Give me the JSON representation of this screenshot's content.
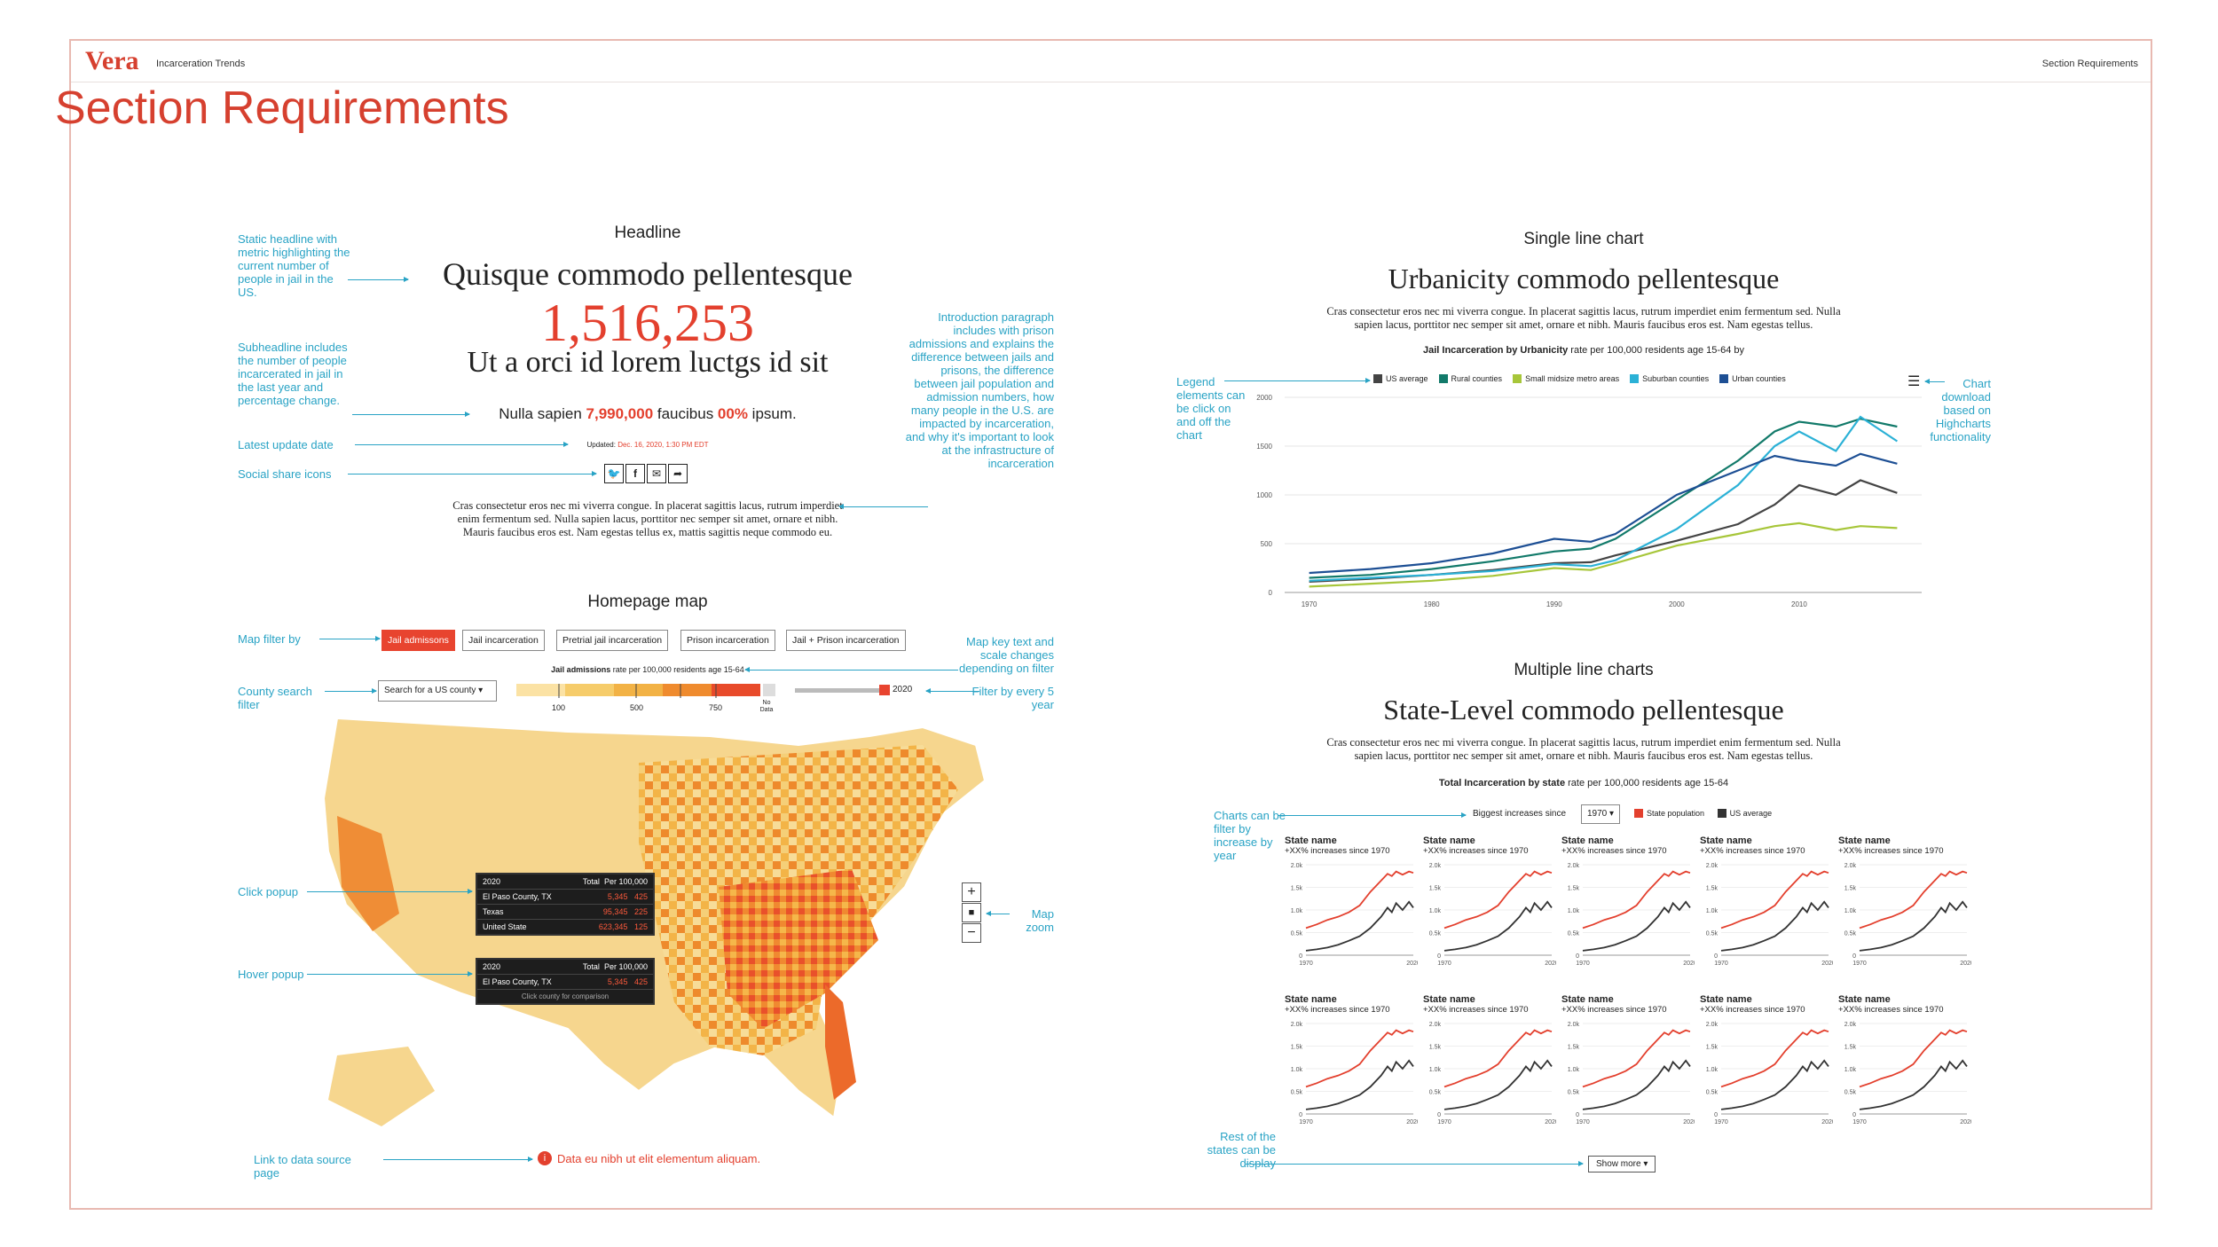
{
  "app": {
    "logo": "Vera",
    "subtitle": "Incarceration Trends",
    "nav_right": "Section Requirements"
  },
  "page_title": "Section Requirements",
  "headline_section": {
    "label": "Headline",
    "title": "Quisque commodo pellentesque",
    "big_number": "1,516,253",
    "subheadline": "Ut a orci id lorem luctgs id sit",
    "stat_line": {
      "pre": "Nulla sapien ",
      "num": "7,990,000",
      "mid": " faucibus ",
      "pct": "00%",
      "post": " ipsum."
    },
    "updated_label": "Updated:",
    "updated_value": "Dec. 16, 2020, 1:30 PM EDT",
    "paragraph": "Cras consectetur eros nec mi viverra congue. In placerat sagittis lacus, rutrum imperdiet enim fermentum sed. Nulla sapien lacus, porttitor nec semper sit amet, ornare et nibh. Mauris faucibus eros est. Nam egestas tellus ex, mattis sagittis neque commodo eu.",
    "share_icons": [
      "twitter-icon",
      "facebook-icon",
      "email-icon",
      "share-icon"
    ]
  },
  "annotations": {
    "static_headline": "Static headline with metric highlighting the current number of people in jail in the US.",
    "subheadline": "Subheadline includes the number of people incarcerated in jail in the last year and percentage change.",
    "latest_update": "Latest update date",
    "social": "Social share icons",
    "intro": "Introduction paragraph includes with prison admissions and explains the difference between jails and prisons, the difference between jail population and admission numbers, how many people in the U.S. are impacted by incarceration, and why it's important to look at the infrastructure of incarceration",
    "map_filter": "Map filter by",
    "county_search": "County search filter",
    "map_key": "Map key text and scale changes depending on filter",
    "filter_year": "Filter by every 5 year",
    "click_popup": "Click popup",
    "hover_popup": "Hover popup",
    "map_zoom": "Map zoom",
    "data_source": "Link to data source page",
    "legend": "Legend elements can be click on and off the chart",
    "download": "Chart download based on Highcharts functionality",
    "filter_increase": "Charts can be filter by increase by year",
    "rest_states": "Rest of the states can be display"
  },
  "map_section": {
    "label": "Homepage map",
    "filters": [
      "Jail admissons",
      "Jail incarceration",
      "Pretrial jail incarceration",
      "Prison incarceration",
      "Jail + Prison incarceration"
    ],
    "key_title_bold": "Jail admissions",
    "key_title_rest": " rate per 100,000 residents age 15-64",
    "search_placeholder": "Search for a US county",
    "scale_ticks": [
      "100",
      "500",
      "750"
    ],
    "no_data": "No Data",
    "year": "2020",
    "click_popup": {
      "year": "2020",
      "total": "Total",
      "per": "Per 100,000",
      "rows": [
        {
          "name": "El Paso County, TX",
          "tag": "More than/Count+1",
          "total": "5,345",
          "per": "425"
        },
        {
          "name": "Texas",
          "tag": "More than/Count+1",
          "total": "95,345",
          "per": "225"
        },
        {
          "name": "United State",
          "tag": "",
          "total": "623,345",
          "per": "125"
        }
      ]
    },
    "hover_popup": {
      "year": "2020",
      "total": "Total",
      "per": "Per 100,000",
      "name": "El Paso County, TX",
      "tot": "5,345",
      "val": "425",
      "hint": "Click county for comparison"
    },
    "data_source_link": "Data eu nibh ut elit elementum aliquam."
  },
  "single_chart": {
    "label": "Single line chart",
    "title": "Urbanicity commodo pellentesque",
    "paragraph": "Cras consectetur eros nec mi viverra congue. In placerat sagittis lacus, rutrum imperdiet enim fermentum sed. Nulla sapien lacus, porttitor nec semper sit amet, ornare et nibh. Mauris faucibus eros est. Nam egestas tellus.",
    "caption_bold": "Jail Incarceration by Urbanicity",
    "caption_rest": " rate per 100,000 residents age 15-64 by"
  },
  "multi_chart": {
    "label": "Multiple line charts",
    "title": "State-Level commodo pellentesque",
    "paragraph": "Cras consectetur eros nec mi viverra congue. In placerat sagittis lacus, rutrum imperdiet enim fermentum sed. Nulla sapien lacus, porttitor nec semper sit amet, ornare et nibh. Mauris faucibus eros est. Nam egestas tellus.",
    "caption_bold": "Total Incarceration by state",
    "caption_rest": " rate per 100,000 residents age 15-64",
    "filter_label": "Biggest increases since",
    "filter_value": "1970",
    "legend": [
      "State population",
      "US average"
    ],
    "card_title": "State name",
    "card_sub": "+XX% increases since 1970",
    "yticks": [
      "2.0k",
      "1.5k",
      "1.0k",
      "0.5k",
      "0"
    ],
    "xticks": [
      "1970",
      "2020"
    ],
    "show_more": "Show more"
  },
  "chart_data": [
    {
      "type": "line",
      "title": "Jail Incarceration by Urbanicity",
      "x": [
        1970,
        1975,
        1980,
        1985,
        1990,
        1993,
        1995,
        2000,
        2005,
        2008,
        2010,
        2013,
        2015,
        2018
      ],
      "ylim": [
        0,
        2000
      ],
      "yticks": [
        0,
        500,
        1000,
        1500,
        2000
      ],
      "xticks": [
        1970,
        1980,
        1990,
        2000,
        2010
      ],
      "series": [
        {
          "name": "US average",
          "color": "#444444",
          "values": [
            110,
            140,
            180,
            230,
            300,
            310,
            380,
            530,
            700,
            900,
            1100,
            1000,
            1150,
            1020
          ]
        },
        {
          "name": "Rural counties",
          "color": "#127a6a",
          "values": [
            150,
            180,
            240,
            320,
            420,
            450,
            550,
            950,
            1350,
            1650,
            1750,
            1700,
            1780,
            1700
          ]
        },
        {
          "name": "Small midsize metro areas",
          "color": "#a7c63a",
          "values": [
            60,
            90,
            120,
            170,
            250,
            230,
            300,
            480,
            600,
            680,
            710,
            640,
            680,
            660
          ]
        },
        {
          "name": "Suburban counties",
          "color": "#2bb1d6",
          "values": [
            120,
            150,
            180,
            220,
            290,
            270,
            330,
            650,
            1100,
            1500,
            1650,
            1450,
            1800,
            1550
          ]
        },
        {
          "name": "Urban counties",
          "color": "#1d4f94",
          "values": [
            200,
            240,
            300,
            400,
            550,
            520,
            600,
            1000,
            1250,
            1400,
            1350,
            1300,
            1420,
            1320
          ]
        }
      ]
    },
    {
      "type": "line",
      "title": "State name",
      "x": [
        1970,
        1975,
        1980,
        1985,
        1990,
        1995,
        2000,
        2005,
        2008,
        2010,
        2012,
        2015,
        2018,
        2020
      ],
      "ylim": [
        0,
        2000
      ],
      "series": [
        {
          "name": "State population",
          "color": "#e3402e",
          "values": [
            600,
            680,
            780,
            850,
            950,
            1100,
            1400,
            1650,
            1800,
            1750,
            1850,
            1780,
            1850,
            1820
          ]
        },
        {
          "name": "US average",
          "color": "#333333",
          "values": [
            100,
            130,
            170,
            230,
            320,
            420,
            600,
            850,
            1050,
            950,
            1150,
            1000,
            1180,
            1050
          ]
        }
      ]
    }
  ],
  "colors": {
    "accent": "#d6402f",
    "annotation": "#29a3c5"
  }
}
